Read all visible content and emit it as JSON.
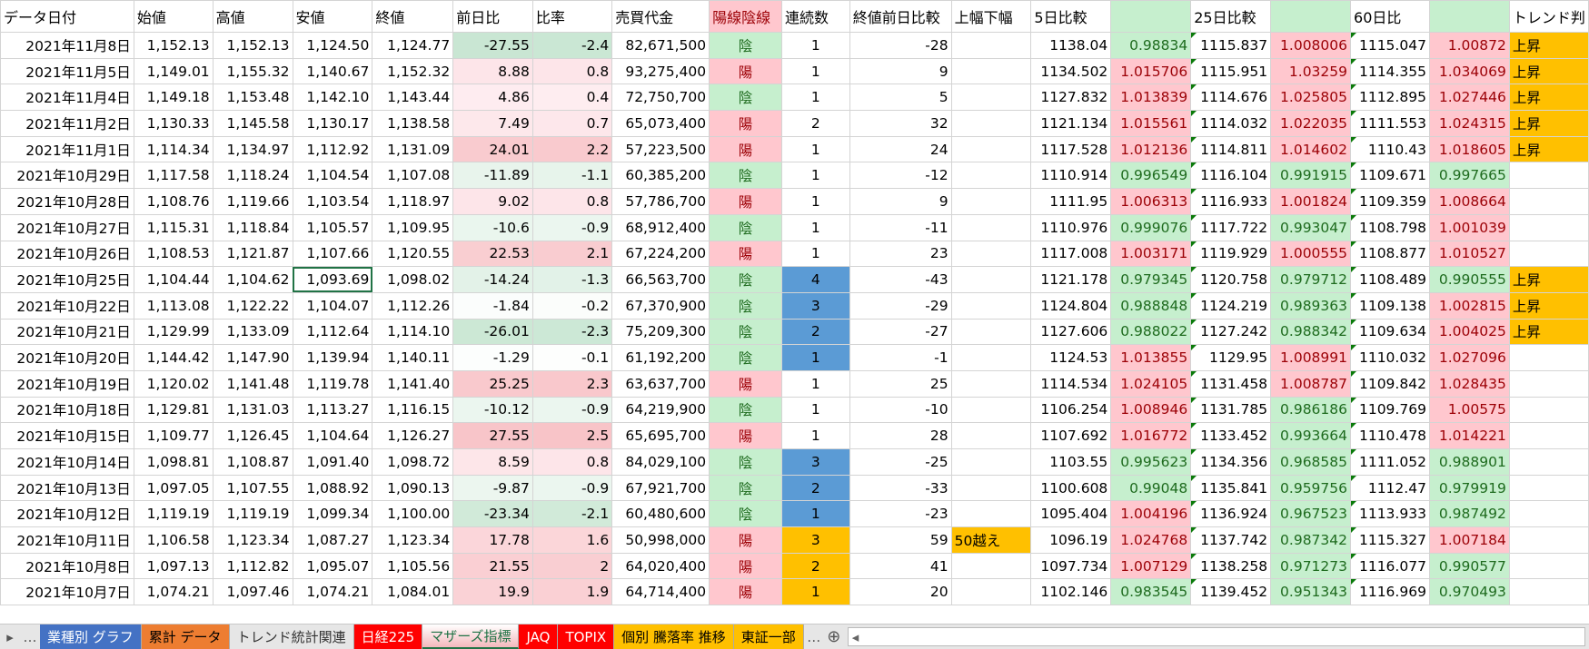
{
  "headers": [
    "データ日付",
    "始値",
    "高値",
    "安値",
    "終値",
    "前日比",
    "比率",
    "売買代金",
    "陽線陰線",
    "連続数",
    "終値前日比較",
    "上幅下幅",
    "5日比較",
    "",
    "25日比較",
    "",
    "60日比",
    "",
    "トレンド判"
  ],
  "rows": [
    [
      "2021年11月8日",
      "1,152.13",
      "1,152.13",
      "1,124.50",
      "1,124.77",
      "-27.55",
      "-2.4",
      "82,671,500",
      "陰",
      "1",
      "-28",
      "",
      "1138.04",
      "0.98834",
      "1115.837",
      "1.008006",
      "1115.047",
      "1.00872",
      "上昇",
      ""
    ],
    [
      "2021年11月5日",
      "1,149.01",
      "1,155.32",
      "1,140.67",
      "1,152.32",
      "8.88",
      "0.8",
      "93,275,400",
      "陽",
      "1",
      "9",
      "",
      "1134.502",
      "1.015706",
      "1115.951",
      "1.03259",
      "1114.355",
      "1.034069",
      "上昇",
      ""
    ],
    [
      "2021年11月4日",
      "1,149.18",
      "1,153.48",
      "1,142.10",
      "1,143.44",
      "4.86",
      "0.4",
      "72,750,700",
      "陰",
      "1",
      "5",
      "",
      "1127.832",
      "1.013839",
      "1114.676",
      "1.025805",
      "1112.895",
      "1.027446",
      "上昇",
      ""
    ],
    [
      "2021年11月2日",
      "1,130.33",
      "1,145.58",
      "1,130.17",
      "1,138.58",
      "7.49",
      "0.7",
      "65,073,400",
      "陽",
      "2",
      "32",
      "",
      "1121.134",
      "1.015561",
      "1114.032",
      "1.022035",
      "1111.553",
      "1.024315",
      "上昇",
      ""
    ],
    [
      "2021年11月1日",
      "1,114.34",
      "1,134.97",
      "1,112.92",
      "1,131.09",
      "24.01",
      "2.2",
      "57,223,500",
      "陽",
      "1",
      "24",
      "",
      "1117.528",
      "1.012136",
      "1114.811",
      "1.014602",
      "1110.43",
      "1.018605",
      "上昇",
      ""
    ],
    [
      "2021年10月29日",
      "1,117.58",
      "1,118.24",
      "1,104.54",
      "1,107.08",
      "-11.89",
      "-1.1",
      "60,385,200",
      "陰",
      "1",
      "-12",
      "",
      "1110.914",
      "0.996549",
      "1116.104",
      "0.991915",
      "1109.671",
      "0.997665",
      "",
      ""
    ],
    [
      "2021年10月28日",
      "1,108.76",
      "1,119.66",
      "1,103.54",
      "1,118.97",
      "9.02",
      "0.8",
      "57,786,700",
      "陽",
      "1",
      "9",
      "",
      "1111.95",
      "1.006313",
      "1116.933",
      "1.001824",
      "1109.359",
      "1.008664",
      "",
      ""
    ],
    [
      "2021年10月27日",
      "1,115.31",
      "1,118.84",
      "1,105.57",
      "1,109.95",
      "-10.6",
      "-0.9",
      "68,912,400",
      "陰",
      "1",
      "-11",
      "",
      "1110.976",
      "0.999076",
      "1117.722",
      "0.993047",
      "1108.798",
      "1.001039",
      "",
      ""
    ],
    [
      "2021年10月26日",
      "1,108.53",
      "1,121.87",
      "1,107.66",
      "1,120.55",
      "22.53",
      "2.1",
      "67,224,200",
      "陽",
      "1",
      "23",
      "",
      "1117.008",
      "1.003171",
      "1119.929",
      "1.000555",
      "1108.877",
      "1.010527",
      "",
      ""
    ],
    [
      "2021年10月25日",
      "1,104.44",
      "1,104.62",
      "1,093.69",
      "1,098.02",
      "-14.24",
      "-1.3",
      "66,563,700",
      "陰",
      "4",
      "-43",
      "",
      "1121.178",
      "0.979345",
      "1120.758",
      "0.979712",
      "1108.489",
      "0.990555",
      "上昇",
      "blue"
    ],
    [
      "2021年10月22日",
      "1,113.08",
      "1,122.22",
      "1,104.07",
      "1,112.26",
      "-1.84",
      "-0.2",
      "67,370,900",
      "陰",
      "3",
      "-29",
      "",
      "1124.804",
      "0.988848",
      "1124.219",
      "0.989363",
      "1109.138",
      "1.002815",
      "上昇",
      "blue"
    ],
    [
      "2021年10月21日",
      "1,129.99",
      "1,133.09",
      "1,112.64",
      "1,114.10",
      "-26.01",
      "-2.3",
      "75,209,300",
      "陰",
      "2",
      "-27",
      "",
      "1127.606",
      "0.988022",
      "1127.242",
      "0.988342",
      "1109.634",
      "1.004025",
      "上昇",
      "blue"
    ],
    [
      "2021年10月20日",
      "1,144.42",
      "1,147.90",
      "1,139.94",
      "1,140.11",
      "-1.29",
      "-0.1",
      "61,192,200",
      "陰",
      "1",
      "-1",
      "",
      "1124.53",
      "1.013855",
      "1129.95",
      "1.008991",
      "1110.032",
      "1.027096",
      "",
      "blue"
    ],
    [
      "2021年10月19日",
      "1,120.02",
      "1,141.48",
      "1,119.78",
      "1,141.40",
      "25.25",
      "2.3",
      "63,637,700",
      "陽",
      "1",
      "25",
      "",
      "1114.534",
      "1.024105",
      "1131.458",
      "1.008787",
      "1109.842",
      "1.028435",
      "",
      ""
    ],
    [
      "2021年10月18日",
      "1,129.81",
      "1,131.03",
      "1,113.27",
      "1,116.15",
      "-10.12",
      "-0.9",
      "64,219,900",
      "陰",
      "1",
      "-10",
      "",
      "1106.254",
      "1.008946",
      "1131.785",
      "0.986186",
      "1109.769",
      "1.00575",
      "",
      ""
    ],
    [
      "2021年10月15日",
      "1,109.77",
      "1,126.45",
      "1,104.64",
      "1,126.27",
      "27.55",
      "2.5",
      "65,695,700",
      "陽",
      "1",
      "28",
      "",
      "1107.692",
      "1.016772",
      "1133.452",
      "0.993664",
      "1110.478",
      "1.014221",
      "",
      ""
    ],
    [
      "2021年10月14日",
      "1,098.81",
      "1,108.87",
      "1,091.40",
      "1,098.72",
      "8.59",
      "0.8",
      "84,029,100",
      "陰",
      "3",
      "-25",
      "",
      "1103.55",
      "0.995623",
      "1134.356",
      "0.968585",
      "1111.052",
      "0.988901",
      "",
      "blue"
    ],
    [
      "2021年10月13日",
      "1,097.05",
      "1,107.55",
      "1,088.92",
      "1,090.13",
      "-9.87",
      "-0.9",
      "67,921,700",
      "陰",
      "2",
      "-33",
      "",
      "1100.608",
      "0.99048",
      "1135.841",
      "0.959756",
      "1112.47",
      "0.979919",
      "",
      "blue"
    ],
    [
      "2021年10月12日",
      "1,119.19",
      "1,119.19",
      "1,099.34",
      "1,100.00",
      "-23.34",
      "-2.1",
      "60,480,600",
      "陰",
      "1",
      "-23",
      "",
      "1095.404",
      "1.004196",
      "1136.924",
      "0.967523",
      "1113.933",
      "0.987492",
      "",
      "blue"
    ],
    [
      "2021年10月11日",
      "1,106.58",
      "1,123.34",
      "1,087.27",
      "1,123.34",
      "17.78",
      "1.6",
      "50,998,000",
      "陽",
      "3",
      "59",
      "50越え",
      "1096.19",
      "1.024768",
      "1137.742",
      "0.987342",
      "1115.327",
      "1.007184",
      "",
      "orange"
    ],
    [
      "2021年10月8日",
      "1,097.13",
      "1,112.82",
      "1,095.07",
      "1,105.56",
      "21.55",
      "2",
      "64,020,400",
      "陽",
      "2",
      "41",
      "",
      "1097.734",
      "1.007129",
      "1138.258",
      "0.971273",
      "1116.077",
      "0.990577",
      "",
      "orange"
    ],
    [
      "2021年10月7日",
      "1,074.21",
      "1,097.46",
      "1,074.21",
      "1,084.01",
      "19.9",
      "1.9",
      "64,714,400",
      "陽",
      "1",
      "20",
      "",
      "1102.146",
      "0.983545",
      "1139.452",
      "0.951343",
      "1116.969",
      "0.970493",
      "",
      "orange"
    ]
  ],
  "selected_cell": "1,093.69",
  "colors": {
    "blue": "#5b9bd5",
    "orange": "#ffc000",
    "green_fill": "#c6efce",
    "pink_fill": "#ffc7ce"
  },
  "tabs": [
    {
      "label": "業種別 グラフ",
      "bg": "#4472c4",
      "fg": "#fff"
    },
    {
      "label": "累計 データ",
      "bg": "#ed7d31",
      "fg": "#000"
    },
    {
      "label": "トレンド統計関連",
      "bg": "#e6e6e6",
      "fg": "#333"
    },
    {
      "label": "日経225",
      "bg": "#ff0000",
      "fg": "#fff"
    },
    {
      "label": "マザーズ指標",
      "bg": "#ffffff",
      "fg": "#217346",
      "active": true
    },
    {
      "label": "JAQ",
      "bg": "#ff0000",
      "fg": "#fff"
    },
    {
      "label": "TOPIX",
      "bg": "#ff0000",
      "fg": "#fff"
    },
    {
      "label": "個別 騰落率 推移",
      "bg": "#ffc000",
      "fg": "#000"
    },
    {
      "label": "東証一部",
      "bg": "#ffc000",
      "fg": "#000"
    }
  ],
  "tabnav": {
    "prev": "▸",
    "more": "…",
    "more2": "…",
    "add": "⊕",
    "scroll_left": "◂"
  }
}
